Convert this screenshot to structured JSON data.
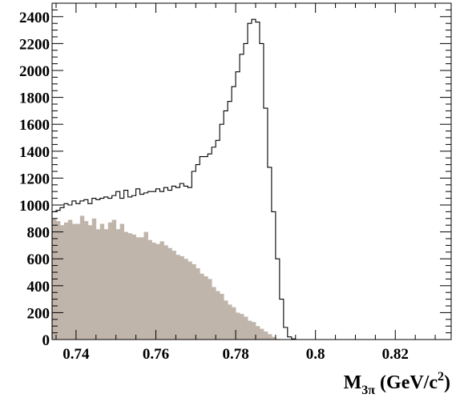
{
  "chart_data": {
    "type": "histogram",
    "title": "",
    "xlabel": "M",
    "xlabel_sub": "3π",
    "xlabel_unit_open": " (GeV/c",
    "xlabel_unit_sup": "2",
    "xlabel_unit_close": ")",
    "ylabel": "",
    "xlim": [
      0.734,
      0.834
    ],
    "ylim": [
      0,
      2500
    ],
    "x_ticks": [
      {
        "value": 0.74,
        "label": "0.74"
      },
      {
        "value": 0.76,
        "label": "0.76"
      },
      {
        "value": 0.78,
        "label": "0.78"
      },
      {
        "value": 0.8,
        "label": "0.8"
      },
      {
        "value": 0.82,
        "label": "0.82"
      }
    ],
    "y_ticks": [
      {
        "value": 0,
        "label": "0"
      },
      {
        "value": 200,
        "label": "200"
      },
      {
        "value": 400,
        "label": "400"
      },
      {
        "value": 600,
        "label": "600"
      },
      {
        "value": 800,
        "label": "800"
      },
      {
        "value": 1000,
        "label": "1000"
      },
      {
        "value": 1200,
        "label": "1200"
      },
      {
        "value": 1400,
        "label": "1400"
      },
      {
        "value": 1600,
        "label": "1600"
      },
      {
        "value": 1800,
        "label": "1800"
      },
      {
        "value": 2000,
        "label": "2000"
      },
      {
        "value": 2200,
        "label": "2200"
      },
      {
        "value": 2400,
        "label": "2400"
      }
    ],
    "x_minor_step": 0.005,
    "y_minor_step": 50,
    "grid": false,
    "bin_start": 0.734,
    "bin_width": 0.001,
    "series": [
      {
        "style": "step-outline",
        "color": "#000000",
        "values": [
          950,
          960,
          980,
          1010,
          1000,
          1030,
          1010,
          1030,
          1040,
          1010,
          1050,
          1040,
          1050,
          1060,
          1050,
          1070,
          1100,
          1050,
          1110,
          1060,
          1070,
          1120,
          1080,
          1090,
          1100,
          1100,
          1120,
          1100,
          1130,
          1110,
          1140,
          1130,
          1160,
          1140,
          1130,
          1250,
          1300,
          1360,
          1360,
          1380,
          1430,
          1480,
          1600,
          1700,
          1770,
          1880,
          1990,
          2120,
          2200,
          2350,
          2380,
          2360,
          2200,
          1720,
          1280,
          950,
          600,
          300,
          90,
          20,
          5,
          0,
          0,
          0,
          0,
          0,
          0,
          0,
          0,
          0,
          0,
          0,
          0,
          0,
          0,
          0,
          0,
          0,
          0,
          0,
          0,
          0,
          0,
          0,
          0,
          0,
          0,
          0,
          0,
          0,
          0,
          0,
          0,
          0,
          0,
          0,
          0,
          0,
          0,
          0
        ]
      },
      {
        "style": "filled",
        "color": "#c0b5aa",
        "values": [
          900,
          880,
          850,
          870,
          890,
          860,
          860,
          920,
          880,
          850,
          900,
          820,
          860,
          820,
          870,
          890,
          820,
          860,
          800,
          790,
          780,
          760,
          760,
          800,
          740,
          720,
          710,
          730,
          700,
          680,
          660,
          630,
          620,
          600,
          580,
          560,
          530,
          490,
          470,
          450,
          390,
          360,
          340,
          290,
          260,
          240,
          200,
          190,
          170,
          140,
          130,
          100,
          80,
          60,
          40,
          20,
          5,
          0,
          0,
          0,
          0,
          0,
          0,
          0,
          0,
          0,
          0,
          0,
          0,
          0,
          0,
          0,
          0,
          0,
          0,
          0,
          0,
          0,
          0,
          0,
          0,
          0,
          0,
          0,
          0,
          0,
          0,
          0,
          0,
          0,
          0,
          0,
          0,
          0,
          0,
          0,
          0,
          0,
          0,
          0
        ]
      }
    ]
  }
}
